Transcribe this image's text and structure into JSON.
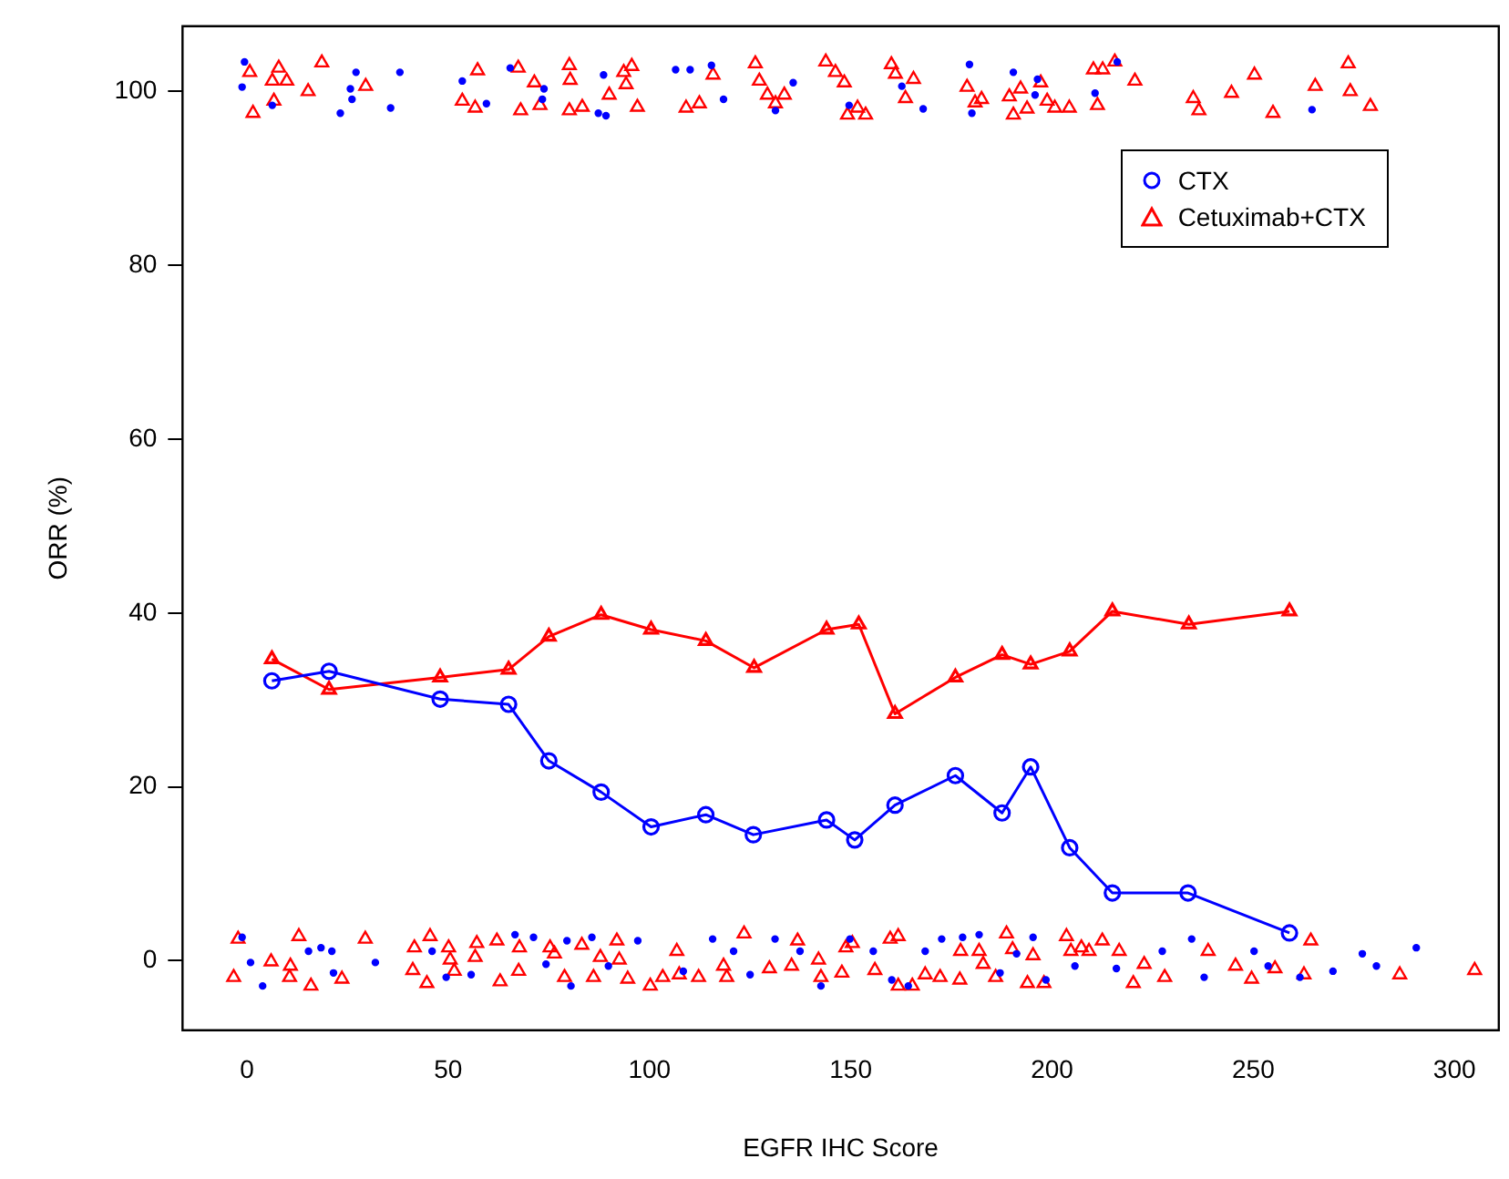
{
  "chart_data": {
    "type": "line",
    "xlabel": "EGFR IHC Score",
    "ylabel": "ORR (%)",
    "xlim": [
      -16,
      311
    ],
    "ylim": [
      -8,
      107.5
    ],
    "xticks": [
      0,
      50,
      100,
      150,
      200,
      250,
      300
    ],
    "yticks": [
      0,
      20,
      40,
      60,
      80,
      100
    ],
    "grid": false,
    "legend": "top right",
    "line_style": "solid",
    "series": [
      {
        "name": "CTX",
        "marker": "circle",
        "color": "#0000ff",
        "x": [
          6.2,
          20.4,
          48,
          65,
          75,
          88,
          100.4,
          114,
          125.8,
          144,
          151,
          161,
          176,
          187.6,
          194.7,
          204.4,
          215,
          233.8,
          259
        ],
        "values": [
          32.2,
          33.3,
          30.1,
          29.5,
          23,
          19.4,
          15.4,
          16.8,
          14.5,
          16.2,
          13.9,
          17.9,
          21.3,
          17,
          22.3,
          13,
          7.8,
          7.8,
          3.2
        ]
      },
      {
        "name": "Cetuximab+CTX",
        "marker": "triangle",
        "color": "#ff0000",
        "x": [
          6.2,
          20.4,
          48,
          65,
          75,
          88,
          100.4,
          114,
          126,
          144,
          152,
          161,
          176,
          187.6,
          194.7,
          204.4,
          215,
          234,
          259
        ],
        "values": [
          34.7,
          31.2,
          32.6,
          33.5,
          37.3,
          39.8,
          38.1,
          36.8,
          33.7,
          38.1,
          38.7,
          28.4,
          32.6,
          35.2,
          34.1,
          35.6,
          40.2,
          38.7,
          40.2
        ]
      },
      {
        "type": "scatter",
        "marker": "circle",
        "color": "#0000ff",
        "x": [
          -0.6,
          -1.2,
          6.3,
          25.7,
          27.1,
          26.1,
          23.2,
          35.7,
          38,
          53.5,
          59.5,
          65.4,
          73.8,
          73.4,
          88.6,
          87.3,
          89.2,
          106.5,
          110.1,
          115.4,
          118.4,
          135.7,
          131.3,
          149.6,
          162.7,
          168,
          179.5,
          180.1,
          190.4,
          196.4,
          195.8,
          210.7,
          216.2,
          264.6,
          -1.2,
          0.9,
          3.9,
          15.3,
          18.4,
          21.1,
          21.5,
          31.9,
          46,
          49.5,
          55.7,
          66.6,
          71.2,
          74.3,
          79.5,
          80.5,
          85.7,
          89.8,
          97.1,
          108.4,
          115.7,
          120.9,
          125,
          131.2,
          137.4,
          142.6,
          149.8,
          155.6,
          160.2,
          164.3,
          168.5,
          172.6,
          177.8,
          181.9,
          187.1,
          191.2,
          195.3,
          198.5,
          205.7,
          216,
          227.4,
          234.7,
          237.8,
          250.2,
          253.7,
          261.6,
          269.8,
          277.1,
          280.6,
          290.5
        ],
        "values": [
          103.4,
          100.5,
          98.4,
          100.3,
          102.2,
          99.1,
          97.5,
          98.1,
          102.2,
          101.2,
          98.6,
          102.7,
          100.3,
          99.1,
          101.9,
          97.5,
          97.2,
          102.5,
          102.5,
          103,
          99.1,
          101,
          97.8,
          98.4,
          100.6,
          98,
          103.1,
          97.5,
          102.2,
          101.4,
          99.6,
          99.8,
          103.4,
          97.9,
          2.7,
          -0.2,
          -2.9,
          1.1,
          1.5,
          1.1,
          -1.4,
          -0.2,
          1.1,
          -1.9,
          -1.6,
          3,
          2.7,
          -0.4,
          2.3,
          -2.9,
          2.7,
          -0.6,
          2.3,
          -1.2,
          2.5,
          1.1,
          -1.6,
          2.5,
          1.1,
          -2.9,
          2.5,
          1.1,
          -2.2,
          -2.9,
          1.1,
          2.5,
          2.7,
          3,
          -1.4,
          0.8,
          2.7,
          -2.2,
          -0.6,
          -0.9,
          1.1,
          2.5,
          -1.9,
          1.1,
          -0.6,
          -1.9,
          -1.2,
          0.8,
          -0.6,
          1.5
        ]
      },
      {
        "type": "scatter",
        "marker": "triangle",
        "color": "#ff0000",
        "x": [
          0.7,
          7.9,
          6.3,
          9.9,
          6.7,
          1.5,
          18.6,
          15.2,
          29.5,
          57.3,
          53.5,
          56.7,
          67.4,
          71.4,
          80.1,
          80.3,
          68,
          72.8,
          80.1,
          83.3,
          90,
          93.6,
          95.6,
          94.2,
          97,
          115.8,
          109.1,
          112.4,
          126.3,
          127.3,
          129.3,
          131.3,
          133.5,
          143.8,
          146.2,
          148.4,
          149.2,
          151.7,
          153.7,
          160.1,
          161.1,
          165.6,
          163.6,
          178.9,
          182.5,
          180.9,
          189.4,
          192.2,
          190.4,
          193.8,
          197.2,
          198.8,
          200.7,
          204.3,
          210.3,
          212.6,
          215.6,
          220.6,
          211.3,
          235.1,
          236.5,
          244.6,
          250.3,
          254.9,
          265.4,
          273.6,
          274.1,
          279.1,
          -2.2,
          -3.3,
          12.9,
          6,
          10.8,
          10.6,
          15.9,
          23.6,
          29.4,
          41.6,
          41.2,
          45.5,
          44.7,
          50.1,
          50.5,
          51.5,
          57.1,
          56.7,
          62.1,
          62.9,
          67.7,
          67.5,
          75.3,
          76.4,
          78.9,
          83.2,
          86.1,
          87.8,
          91.9,
          92.5,
          94.6,
          100.2,
          103.3,
          106.8,
          107.4,
          112.2,
          118.4,
          123.5,
          119.2,
          129.8,
          135.3,
          136.8,
          142,
          142.6,
          148.8,
          147.8,
          150.4,
          156,
          159.8,
          161.8,
          161.8,
          165.3,
          168.5,
          172.2,
          177.3,
          177.1,
          181.9,
          182.9,
          186,
          188.7,
          190.2,
          195.3,
          193.9,
          198,
          203.6,
          204.7,
          207.3,
          209.2,
          212.5,
          216.7,
          220.2,
          222.9,
          228,
          238.8,
          245.6,
          249.6,
          255.4,
          262.6,
          264.3,
          286.4,
          305
        ],
        "values": [
          102.2,
          102.7,
          101.2,
          101.2,
          98.9,
          97.5,
          103.3,
          100,
          100.6,
          102.4,
          98.9,
          98.1,
          102.7,
          101,
          103,
          101.3,
          97.8,
          98.4,
          97.8,
          98.2,
          99.6,
          102.2,
          102.9,
          100.8,
          98.2,
          101.9,
          98.1,
          98.6,
          103.2,
          101.2,
          99.6,
          98.6,
          99.6,
          103.4,
          102.2,
          101,
          97.3,
          98.1,
          97.3,
          103.1,
          102,
          101.4,
          99.2,
          100.5,
          99.1,
          98.7,
          99.4,
          100.3,
          97.3,
          98,
          101,
          98.9,
          98.1,
          98.1,
          102.5,
          102.5,
          103.4,
          101.2,
          98.4,
          99.2,
          97.8,
          99.8,
          101.9,
          97.5,
          100.6,
          103.2,
          100,
          98.3,
          2.5,
          -1.9,
          2.8,
          -0.1,
          -0.6,
          -1.9,
          -2.9,
          -2.1,
          2.5,
          1.5,
          -1.1,
          2.8,
          -2.6,
          1.5,
          0.1,
          -1.2,
          2,
          0.4,
          2.3,
          -2.4,
          1.5,
          -1.2,
          1.5,
          0.8,
          -1.9,
          1.8,
          -1.9,
          0.4,
          2.3,
          0.1,
          -2.1,
          -2.9,
          -1.9,
          1.1,
          -1.6,
          -1.9,
          -0.6,
          3.1,
          -1.9,
          -0.9,
          -0.6,
          2.3,
          0.1,
          -1.9,
          1.5,
          -1.4,
          2,
          -1.1,
          2.5,
          2.8,
          -2.9,
          -2.9,
          -1.6,
          -1.9,
          1.1,
          -2.2,
          1.1,
          -0.4,
          -1.9,
          3.1,
          1.3,
          0.6,
          -2.6,
          -2.6,
          2.8,
          1.1,
          1.5,
          1.1,
          2.3,
          1.1,
          -2.6,
          -0.4,
          -1.9,
          1.1,
          -0.6,
          -2.1,
          -0.9,
          -1.6,
          2.3,
          -1.6,
          -1.1
        ]
      }
    ]
  }
}
